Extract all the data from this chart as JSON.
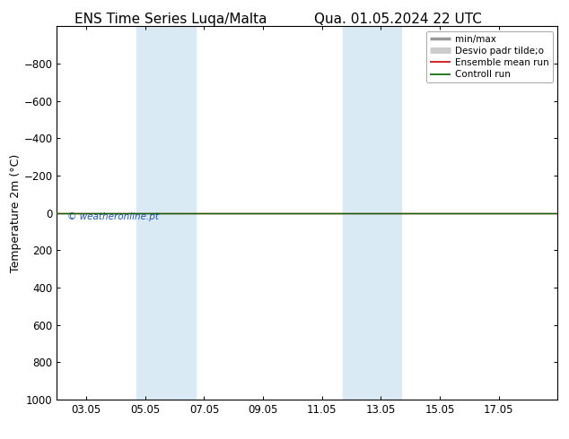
{
  "title_left": "ENS Time Series Luqa/Malta",
  "title_right": "Qua. 01.05.2024 22 UTC",
  "ylabel": "Temperature 2m (°C)",
  "ylim_top": -1000,
  "ylim_bottom": 1000,
  "yticks": [
    -800,
    -600,
    -400,
    -200,
    0,
    200,
    400,
    600,
    800,
    1000
  ],
  "xtick_labels": [
    "03.05",
    "05.05",
    "07.05",
    "09.05",
    "11.05",
    "13.05",
    "15.05",
    "17.05"
  ],
  "xtick_positions": [
    2,
    4,
    6,
    8,
    10,
    12,
    14,
    16
  ],
  "xlim": [
    1.0,
    18.0
  ],
  "shaded_bands": [
    {
      "x_start": 3.7,
      "x_end": 5.7
    },
    {
      "x_start": 10.7,
      "x_end": 12.7
    }
  ],
  "hline_y": 0,
  "hline_color_green": "#006400",
  "hline_color_red": "#cc0000",
  "background_color": "#ffffff",
  "shaded_color": "#daeaf5",
  "watermark_text": "© weatheronline.pt",
  "watermark_color": "#1a52c4",
  "legend_items": [
    {
      "label": "min/max",
      "color": "#999999",
      "lw": 2.5
    },
    {
      "label": "Desvio padr tilde;o",
      "color": "#cccccc",
      "lw": 5
    },
    {
      "label": "Ensemble mean run",
      "color": "#cc0000",
      "lw": 1.2
    },
    {
      "label": "Controll run",
      "color": "#006400",
      "lw": 1.2
    }
  ],
  "title_fontsize": 11,
  "tick_fontsize": 8.5,
  "ylabel_fontsize": 9,
  "watermark_fontsize": 7.5,
  "legend_fontsize": 7.5
}
